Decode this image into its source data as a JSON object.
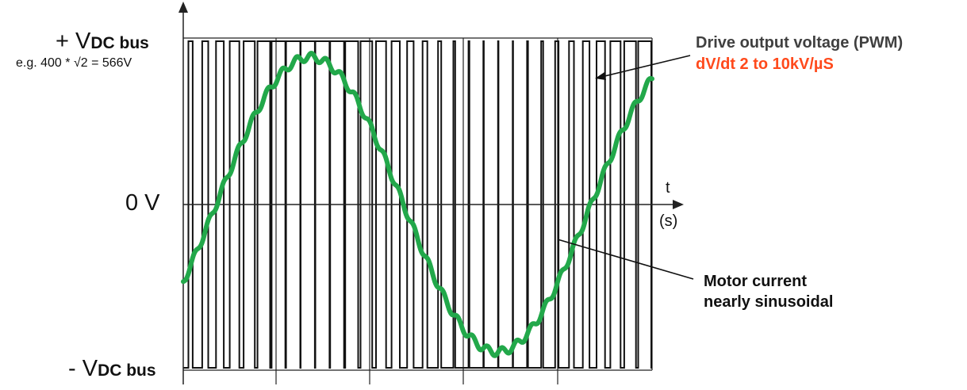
{
  "labels": {
    "vdc_plus_prefix": "+ V",
    "vdc_plus_sub": "DC bus",
    "example": "e.g. 400 * √2 = 566V",
    "zero": "0 V",
    "vdc_minus_prefix": "- V",
    "vdc_minus_sub": "DC bus",
    "t_axis": "t",
    "t_unit": "(s)"
  },
  "annotations": {
    "pwm_title": "Drive output voltage (PWM)",
    "pwm_dvdt": "dV/dt  2 to 10kV/µS",
    "current_line1": "Motor current",
    "current_line2": "nearly sinusoidal"
  },
  "colors": {
    "pwm": "#111111",
    "current": "#22a84a",
    "accent": "#ff4a1c",
    "annotation": "#404040"
  },
  "waveform": {
    "pwm_levels": [
      1,
      -1
    ],
    "carrier_periods": 32,
    "current_shape": "sine with ripple",
    "current_cycles": 1.25
  }
}
